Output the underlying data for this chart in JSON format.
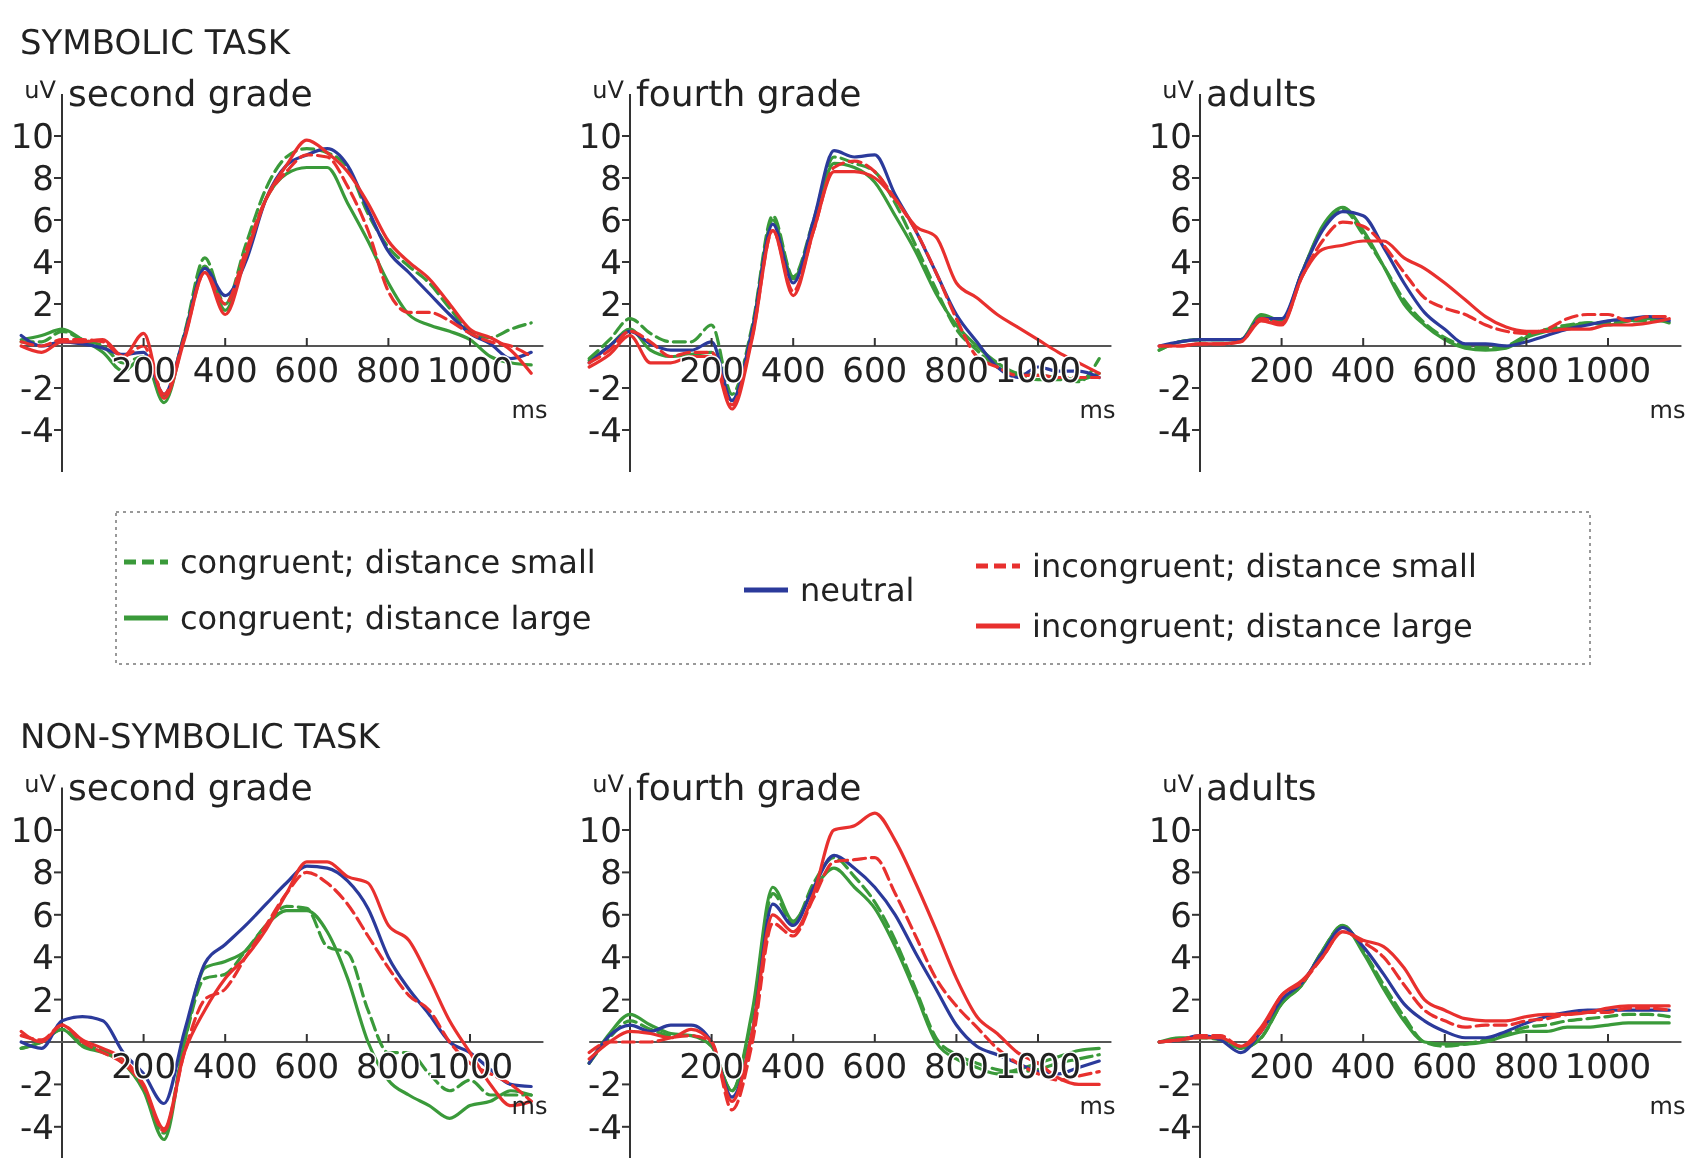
{
  "chart_data": [
    {
      "type": "line",
      "title": "second grade",
      "annotations": [
        "SYMBOLIC TASK"
      ],
      "xlabel": "ms",
      "ylabel": "uV",
      "xlim": [
        -100,
        1180
      ],
      "ylim": [
        -6,
        12
      ],
      "xticks": [
        200,
        400,
        600,
        800,
        1000
      ],
      "yticks": [
        -4,
        -2,
        2,
        4,
        6,
        8,
        10
      ],
      "legend": "bottom",
      "x": [
        -100,
        -50,
        0,
        50,
        100,
        150,
        200,
        250,
        300,
        350,
        400,
        450,
        500,
        550,
        600,
        650,
        700,
        750,
        800,
        850,
        900,
        950,
        1000,
        1050,
        1100,
        1150
      ],
      "series": [
        {
          "name": "congruent; distance small",
          "color": "#3a9a3a",
          "line_style": "dashed",
          "values": [
            0.2,
            0.2,
            0.7,
            0.3,
            0,
            -0.8,
            -0.5,
            -2.4,
            0.6,
            4.2,
            2,
            4.8,
            7.5,
            9,
            9.4,
            9.2,
            8.5,
            6.3,
            4.7,
            3.8,
            3,
            1.8,
            0.7,
            0.4,
            0.8,
            1.1
          ]
        },
        {
          "name": "congruent; distance large",
          "color": "#3a9a3a",
          "line_style": "solid",
          "values": [
            0.3,
            0.5,
            0.8,
            0.3,
            -0.3,
            -1.2,
            -0.5,
            -2.7,
            0.5,
            3.8,
            1.7,
            4.3,
            7,
            8.2,
            8.5,
            8.5,
            6.8,
            5,
            3,
            1.5,
            1,
            0.7,
            0.3,
            -0.5,
            -0.8,
            -0.9
          ]
        },
        {
          "name": "neutral",
          "color": "#2b3a9b",
          "line_style": "solid",
          "values": [
            0.5,
            0,
            0.2,
            0.1,
            -0.1,
            -0.4,
            -0.3,
            -2.3,
            0.5,
            3.7,
            2.4,
            4,
            7,
            8.6,
            9.1,
            9.4,
            8.6,
            6.5,
            4.5,
            3.5,
            2.5,
            1.5,
            0.6,
            0.1,
            -0.6,
            -0.3
          ]
        },
        {
          "name": "incongruent; distance small",
          "color": "#e8302e",
          "line_style": "dashed",
          "values": [
            0.2,
            0,
            0.3,
            0.3,
            0.2,
            -0.5,
            0,
            -2.3,
            0.4,
            3.5,
            2,
            4.5,
            7,
            8.3,
            9.1,
            9,
            7.6,
            5.5,
            2.6,
            1.6,
            1.6,
            1.2,
            0.6,
            0.2,
            0,
            -0.5
          ]
        },
        {
          "name": "incongruent; distance large",
          "color": "#e8302e",
          "line_style": "solid",
          "values": [
            0,
            -0.3,
            0.2,
            0.2,
            0.3,
            -0.5,
            0.6,
            -2.5,
            0.3,
            3.5,
            1.5,
            4.2,
            7,
            8.6,
            9.8,
            9.2,
            8.3,
            6.8,
            5,
            4,
            3.2,
            2,
            0.8,
            0.4,
            -0.2,
            -1.3
          ]
        }
      ]
    },
    {
      "type": "line",
      "title": "fourth grade",
      "xlabel": "ms",
      "ylabel": "uV",
      "xlim": [
        -100,
        1180
      ],
      "ylim": [
        -6,
        12
      ],
      "xticks": [
        200,
        400,
        600,
        800,
        1000
      ],
      "yticks": [
        -4,
        -2,
        2,
        4,
        6,
        8,
        10
      ],
      "x": [
        -100,
        -50,
        0,
        50,
        100,
        150,
        200,
        250,
        300,
        350,
        400,
        450,
        500,
        550,
        600,
        650,
        700,
        750,
        800,
        850,
        900,
        950,
        1000,
        1050,
        1100,
        1150
      ],
      "series": [
        {
          "color": "#3a9a3a",
          "line_style": "dashed",
          "values": [
            -0.6,
            0.3,
            1.3,
            0.6,
            0.2,
            0.2,
            1,
            -2.3,
            1,
            6.2,
            3.3,
            6,
            9,
            8.7,
            8.3,
            6.8,
            4.8,
            2.7,
            0.8,
            -0.2,
            -1,
            -1.4,
            -1.6,
            -1.6,
            -1.7,
            -0.6
          ]
        },
        {
          "color": "#3a9a3a",
          "line_style": "solid",
          "values": [
            -0.7,
            0,
            0.8,
            -0.2,
            -0.5,
            -0.4,
            -0.3,
            -2.6,
            0.8,
            6,
            3.2,
            5.8,
            8.7,
            8.5,
            7.8,
            6.2,
            4.5,
            2.5,
            1,
            0,
            -0.8,
            -1.3,
            -1.4,
            -1.5,
            -1.6,
            -1.3
          ]
        },
        {
          "color": "#2b3a9b",
          "line_style": "solid",
          "values": [
            -0.8,
            0,
            0.7,
            0.1,
            -0.2,
            -0.2,
            0.2,
            -2.6,
            0.8,
            5.8,
            3,
            6,
            9.3,
            9,
            9.1,
            7.2,
            5.5,
            3.5,
            1.5,
            0.2,
            -1,
            -1.5,
            -1,
            -1.2,
            -1.2,
            -1.5
          ]
        },
        {
          "color": "#e8302e",
          "line_style": "dashed",
          "values": [
            -0.8,
            -0.2,
            0.7,
            0.2,
            -0.5,
            -0.3,
            -0.3,
            -2.8,
            0.5,
            5.5,
            2.6,
            5.5,
            8.5,
            8.8,
            8.3,
            7,
            5.5,
            3.5,
            1.3,
            -0.5,
            -1,
            -1.4,
            -1.4,
            -1.5,
            -1.5,
            -1.5
          ]
        },
        {
          "color": "#e8302e",
          "line_style": "solid",
          "values": [
            -1,
            -0.4,
            0.5,
            -0.8,
            -0.8,
            -0.5,
            -0.5,
            -3,
            0.4,
            5.5,
            2.4,
            5.5,
            8.3,
            8.3,
            8,
            7,
            5.7,
            5.2,
            3,
            2.3,
            1.5,
            0.9,
            0.3,
            -0.3,
            -0.8,
            -1.3
          ]
        }
      ]
    },
    {
      "type": "line",
      "title": "adults",
      "xlabel": "ms",
      "ylabel": "uV",
      "xlim": [
        -100,
        1180
      ],
      "ylim": [
        -6,
        12
      ],
      "xticks": [
        200,
        400,
        600,
        800,
        1000
      ],
      "yticks": [
        -4,
        -2,
        2,
        4,
        6,
        8,
        10
      ],
      "x": [
        -100,
        -50,
        0,
        50,
        100,
        150,
        200,
        250,
        300,
        350,
        400,
        450,
        500,
        550,
        600,
        650,
        700,
        750,
        800,
        850,
        900,
        950,
        1000,
        1050,
        1100,
        1150
      ],
      "series": [
        {
          "color": "#3a9a3a",
          "line_style": "dashed",
          "values": [
            -0.2,
            0.2,
            0.3,
            0.3,
            0.3,
            1.4,
            1.1,
            3.5,
            5.6,
            6.5,
            5.3,
            3.8,
            2.2,
            1.1,
            0.4,
            0,
            -0.1,
            0,
            0.5,
            0.8,
            1,
            1.1,
            1.1,
            1.2,
            1.2,
            1.2
          ]
        },
        {
          "color": "#3a9a3a",
          "line_style": "solid",
          "values": [
            -0.2,
            0.2,
            0.3,
            0.3,
            0.3,
            1.5,
            1.2,
            3.5,
            5.7,
            6.6,
            5.5,
            3.8,
            2,
            1,
            0.3,
            -0.1,
            -0.2,
            -0.1,
            0.4,
            0.7,
            0.9,
            1.1,
            1,
            1.2,
            1.3,
            1.1
          ]
        },
        {
          "color": "#2b3a9b",
          "line_style": "solid",
          "values": [
            0,
            0.2,
            0.3,
            0.3,
            0.3,
            1.3,
            1.3,
            3.5,
            5.5,
            6.4,
            6.2,
            4.7,
            3,
            1.6,
            0.8,
            0.1,
            0.1,
            0,
            0.2,
            0.5,
            0.8,
            1,
            1.2,
            1.3,
            1.4,
            1.2
          ]
        },
        {
          "color": "#e8302e",
          "line_style": "dashed",
          "values": [
            0,
            0,
            0.1,
            0.1,
            0.2,
            1.3,
            1.1,
            3.3,
            5,
            5.9,
            5.7,
            4.8,
            3.5,
            2.3,
            1.8,
            1.5,
            1,
            0.7,
            0.6,
            0.8,
            1.3,
            1.5,
            1.5,
            1.2,
            1.4,
            1.4
          ]
        },
        {
          "color": "#e8302e",
          "line_style": "solid",
          "values": [
            0,
            0,
            0.1,
            0.1,
            0.2,
            1.2,
            1,
            3.3,
            4.6,
            4.8,
            5,
            5,
            4.2,
            3.7,
            3,
            2.2,
            1.4,
            0.9,
            0.7,
            0.7,
            0.8,
            0.8,
            1,
            1,
            1.1,
            1.3
          ]
        }
      ]
    },
    {
      "type": "line",
      "title": "second grade",
      "annotations": [
        "NON-SYMBOLIC TASK"
      ],
      "xlabel": "ms",
      "ylabel": "uV",
      "xlim": [
        -100,
        1180
      ],
      "ylim": [
        -5.5,
        12
      ],
      "xticks": [
        200,
        400,
        600,
        800,
        1000
      ],
      "yticks": [
        -4,
        -2,
        2,
        4,
        6,
        8,
        10
      ],
      "x": [
        -100,
        -50,
        0,
        50,
        100,
        150,
        200,
        250,
        300,
        350,
        400,
        450,
        500,
        550,
        600,
        650,
        700,
        750,
        800,
        850,
        900,
        950,
        1000,
        1050,
        1100,
        1150
      ],
      "series": [
        {
          "color": "#3a9a3a",
          "line_style": "dashed",
          "values": [
            -0.3,
            0,
            0.6,
            -0.1,
            -0.4,
            -1,
            -2.2,
            -4.3,
            0,
            3,
            3.2,
            4.3,
            5.5,
            6.4,
            6.3,
            4.5,
            4.2,
            1.5,
            -0.5,
            -0.5,
            -1.5,
            -2.3,
            -1.8,
            -2.5,
            -2.5,
            -2.5
          ]
        },
        {
          "color": "#3a9a3a",
          "line_style": "solid",
          "values": [
            -0.3,
            0,
            0.6,
            -0.2,
            -0.5,
            -1,
            -2.3,
            -4.6,
            0,
            3.5,
            3.8,
            4.3,
            5.5,
            6.2,
            6.2,
            5.2,
            3,
            0,
            -1.8,
            -2.5,
            -3,
            -3.6,
            -3,
            -2.8,
            -2.3,
            -2.5
          ]
        },
        {
          "color": "#2b3a9b",
          "line_style": "solid",
          "values": [
            0,
            -0.3,
            1,
            1.2,
            1,
            -0.5,
            -1.5,
            -2.9,
            0.5,
            3.7,
            4.6,
            5.5,
            6.5,
            7.5,
            8.3,
            8.2,
            7.6,
            6.3,
            4,
            2.5,
            1.3,
            0,
            -0.5,
            -1.3,
            -2,
            -2.1
          ]
        },
        {
          "color": "#e8302e",
          "line_style": "dashed",
          "values": [
            0.3,
            0.1,
            0.8,
            0,
            -0.5,
            -1,
            -2.1,
            -4.2,
            -0.5,
            2,
            2.5,
            4,
            5.5,
            7,
            8,
            7.5,
            6.5,
            5,
            3.5,
            2.2,
            1.5,
            0,
            -1,
            -1.5,
            -2,
            -2.8
          ]
        },
        {
          "color": "#e8302e",
          "line_style": "solid",
          "values": [
            0.5,
            0,
            0.8,
            0.1,
            -0.3,
            -0.8,
            -2,
            -4.1,
            -0.5,
            1.5,
            3,
            4,
            5.3,
            7,
            8.5,
            8.5,
            7.8,
            7.5,
            5.5,
            4.8,
            3,
            1,
            -0.5,
            -2,
            -3,
            -2.8
          ]
        }
      ]
    },
    {
      "type": "line",
      "title": "fourth grade",
      "xlabel": "ms",
      "ylabel": "uV",
      "xlim": [
        -100,
        1180
      ],
      "ylim": [
        -5.5,
        12
      ],
      "xticks": [
        200,
        400,
        600,
        800,
        1000
      ],
      "yticks": [
        -4,
        -2,
        2,
        4,
        6,
        8,
        10
      ],
      "x": [
        -100,
        -50,
        0,
        50,
        100,
        150,
        200,
        250,
        300,
        350,
        400,
        450,
        500,
        550,
        600,
        650,
        700,
        750,
        800,
        850,
        900,
        950,
        1000,
        1050,
        1100,
        1150
      ],
      "series": [
        {
          "color": "#3a9a3a",
          "line_style": "dashed",
          "values": [
            -1,
            0.2,
            1,
            0.6,
            0.3,
            0.3,
            -0.2,
            -2.3,
            1.3,
            7,
            5.6,
            7.5,
            8.7,
            7.8,
            6.6,
            4.8,
            2.5,
            0.2,
            -0.6,
            -1,
            -1.3,
            -1.4,
            -1.3,
            -1,
            -0.8,
            -0.6
          ]
        },
        {
          "color": "#3a9a3a",
          "line_style": "solid",
          "values": [
            -1,
            0.4,
            1.3,
            0.8,
            0.4,
            0.3,
            -0.2,
            -2.3,
            1.5,
            7.3,
            5.7,
            7.2,
            8.2,
            7.3,
            6.3,
            4.5,
            2.3,
            0,
            -0.8,
            -1.2,
            -1.5,
            -1.3,
            -1,
            -0.7,
            -0.4,
            -0.3
          ]
        },
        {
          "color": "#2b3a9b",
          "line_style": "solid",
          "values": [
            -1,
            0.3,
            0.8,
            0.5,
            0.8,
            0.8,
            0,
            -2.6,
            0.5,
            6.5,
            5.5,
            7.3,
            8.8,
            8.2,
            7.3,
            6,
            4.2,
            2.5,
            0.8,
            -0.2,
            -0.6,
            -1,
            -1.4,
            -1.5,
            -1.2,
            -0.9
          ]
        },
        {
          "color": "#e8302e",
          "line_style": "dashed",
          "values": [
            -0.5,
            0,
            0,
            0,
            0.2,
            0.3,
            0,
            -3.2,
            0,
            5.6,
            5,
            6.8,
            8.5,
            8.6,
            8.7,
            7,
            5,
            3,
            1.7,
            0.7,
            -0.3,
            -1,
            -1.5,
            -1.8,
            -1.6,
            -1.4
          ]
        },
        {
          "color": "#e8302e",
          "line_style": "solid",
          "values": [
            -0.8,
            0,
            0.5,
            0.4,
            0.2,
            0.6,
            0,
            -2.8,
            0.5,
            6,
            5.2,
            7,
            10,
            10.2,
            10.8,
            9.5,
            7.5,
            5.3,
            3,
            1.2,
            0.4,
            -0.5,
            -1,
            -1.7,
            -2,
            -2
          ]
        }
      ]
    },
    {
      "type": "line",
      "title": "adults",
      "xlabel": "ms",
      "ylabel": "uV",
      "xlim": [
        -100,
        1180
      ],
      "ylim": [
        -5.5,
        12
      ],
      "xticks": [
        200,
        400,
        600,
        800,
        1000
      ],
      "yticks": [
        -4,
        -2,
        2,
        4,
        6,
        8,
        10
      ],
      "x": [
        -100,
        -50,
        0,
        50,
        100,
        150,
        200,
        250,
        300,
        350,
        400,
        450,
        500,
        550,
        600,
        650,
        700,
        750,
        800,
        850,
        900,
        950,
        1000,
        1050,
        1100,
        1150
      ],
      "series": [
        {
          "color": "#3a9a3a",
          "line_style": "dashed",
          "values": [
            0,
            0.1,
            0.2,
            0.1,
            -0.3,
            0.2,
            1.8,
            2.7,
            4.3,
            5.5,
            4.3,
            2.7,
            1.2,
            0,
            -0.2,
            -0.1,
            0.1,
            0.4,
            0.7,
            0.8,
            1,
            1.1,
            1.2,
            1.3,
            1.3,
            1.2
          ]
        },
        {
          "color": "#3a9a3a",
          "line_style": "solid",
          "values": [
            0,
            0.2,
            0.2,
            0.2,
            -0.3,
            0.2,
            1.8,
            2.7,
            4.3,
            5.5,
            4.2,
            2.5,
            1,
            0,
            -0.1,
            -0.1,
            0,
            0.3,
            0.5,
            0.5,
            0.7,
            0.7,
            0.8,
            0.9,
            0.9,
            0.9
          ]
        },
        {
          "color": "#2b3a9b",
          "line_style": "solid",
          "values": [
            0,
            0.1,
            0.3,
            0.1,
            -0.5,
            0.5,
            2,
            2.8,
            4.2,
            5.4,
            4.5,
            3.2,
            1.8,
            1,
            0.5,
            0.2,
            0.2,
            0.5,
            0.9,
            1.2,
            1.4,
            1.5,
            1.5,
            1.5,
            1.5,
            1.5
          ]
        },
        {
          "color": "#e8302e",
          "line_style": "dashed",
          "values": [
            0,
            0.1,
            0.3,
            0.3,
            -0.2,
            0.5,
            2.2,
            2.8,
            4,
            5.2,
            4.7,
            4,
            2.7,
            1.5,
            1,
            0.7,
            0.8,
            0.8,
            1,
            1.1,
            1.3,
            1.4,
            1.4,
            1.6,
            1.6,
            1.5
          ]
        },
        {
          "color": "#e8302e",
          "line_style": "solid",
          "values": [
            0,
            0.1,
            0.2,
            0.2,
            -0.2,
            0.7,
            2.2,
            2.9,
            4,
            5.2,
            4.8,
            4.5,
            3.5,
            2,
            1.5,
            1.1,
            1,
            1,
            1.2,
            1.3,
            1.3,
            1.4,
            1.6,
            1.7,
            1.7,
            1.7
          ]
        }
      ]
    }
  ]
}
